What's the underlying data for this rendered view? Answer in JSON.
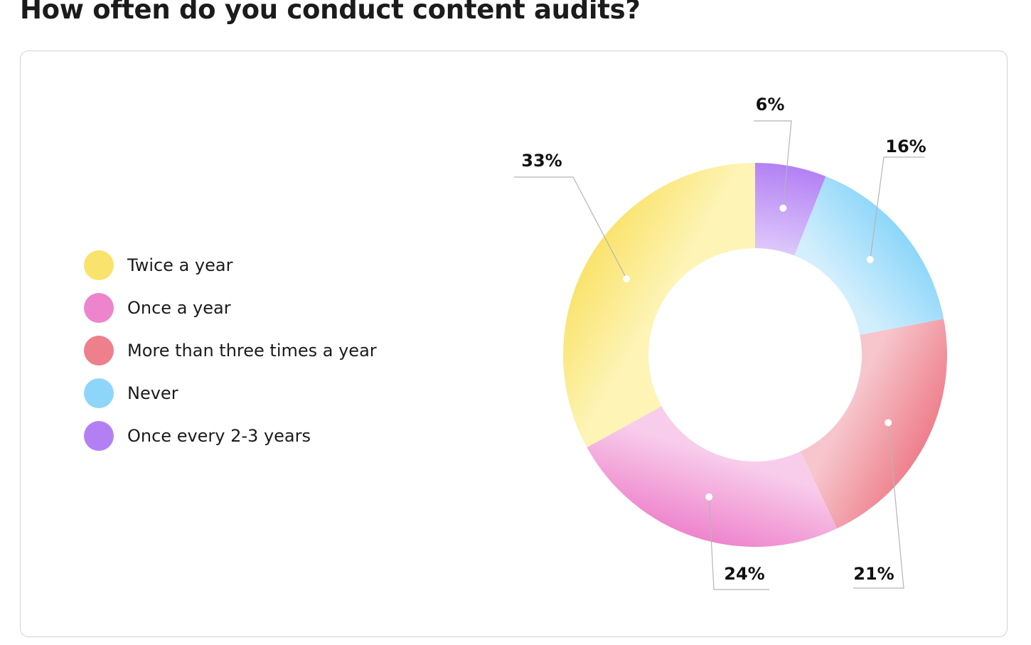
{
  "title": "How often do you conduct content audits?",
  "chart_data": {
    "type": "pie",
    "subtype": "donut",
    "title": "How often do you conduct content audits?",
    "legend_position": "left",
    "categories": [
      "Twice a year",
      "Once a year",
      "More than three times a year",
      "Never",
      "Once every 2-3 years"
    ],
    "values": [
      33,
      24,
      21,
      16,
      6
    ],
    "value_labels": [
      "33%",
      "24%",
      "21%",
      "16%",
      "6%"
    ],
    "unit": "%",
    "colors": {
      "Twice a year": {
        "outer": "#fae36c",
        "inner": "#fdf4b6"
      },
      "Once a year": {
        "outer": "#ee84cc",
        "inner": "#f8cdeb"
      },
      "More than three times a year": {
        "outer": "#ee7f8c",
        "inner": "#f6c6cc"
      },
      "Never": {
        "outer": "#8dd6f9",
        "inner": "#d3effd"
      },
      "Once every 2-3 years": {
        "outer": "#b380f4",
        "inner": "#dcc7fb"
      }
    },
    "drawing_order": [
      "Once every 2-3 years",
      "Never",
      "More than three times a year",
      "Once a year",
      "Twice a year"
    ]
  }
}
